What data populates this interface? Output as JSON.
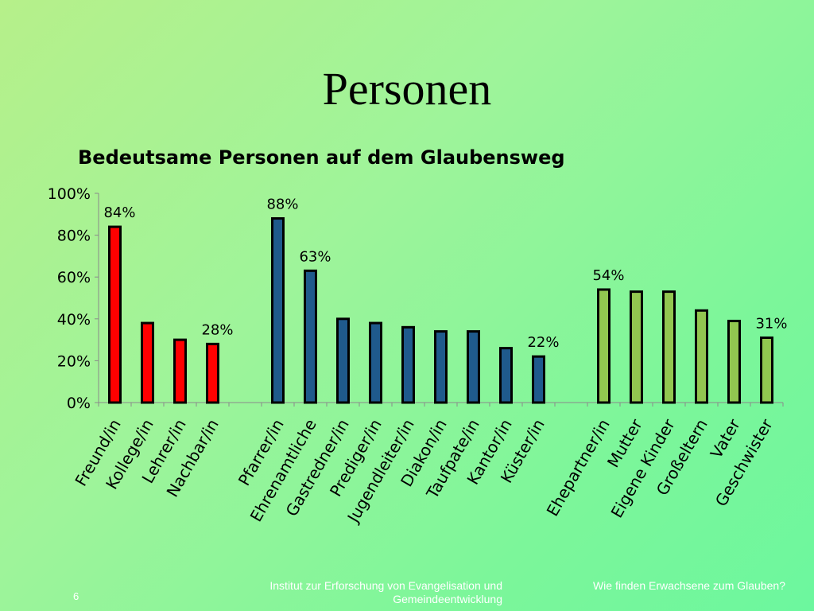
{
  "slide": {
    "title": "Personen",
    "number": "6",
    "footer_left": "Institut zur Erforschung von Evangelisation und Gemeindeentwicklung",
    "footer_right": "Wie finden Erwachsene zum Glauben?"
  },
  "chart_data": {
    "type": "bar",
    "title": "Bedeutsame Personen auf dem Glaubensweg",
    "xlabel": "",
    "ylabel": "",
    "ylim": [
      0,
      100
    ],
    "yticks": [
      "0%",
      "20%",
      "40%",
      "60%",
      "80%",
      "100%"
    ],
    "grid": false,
    "legend": "none",
    "groups": [
      {
        "color": "#ff0000",
        "categories": [
          "Freund/in",
          "Kollege/in",
          "Lehrer/in",
          "Nachbar/in"
        ],
        "values": [
          84,
          38,
          30,
          28
        ],
        "labels": [
          "84%",
          "",
          "",
          "28%"
        ]
      },
      {
        "color": "#1f5a8c",
        "categories": [
          "Pfarrer/in",
          "Ehrenamtliche",
          "Gastredner/in",
          "Prediger/in",
          "Jugendleiter/in",
          "Diakon/in",
          "Taufpate/in",
          "Kantor/in",
          "Küster/in"
        ],
        "values": [
          88,
          63,
          40,
          38,
          36,
          34,
          34,
          26,
          22
        ],
        "labels": [
          "88%",
          "63%",
          "",
          "",
          "",
          "",
          "",
          "",
          "22%"
        ]
      },
      {
        "color": "#92c650",
        "categories": [
          "Ehepartner/in",
          "Mutter",
          "Eigene Kinder",
          "Großeltern",
          "Vater",
          "Geschwister"
        ],
        "values": [
          54,
          53,
          53,
          44,
          39,
          31
        ],
        "labels": [
          "54%",
          "",
          "",
          "",
          "",
          "31%"
        ]
      }
    ]
  }
}
